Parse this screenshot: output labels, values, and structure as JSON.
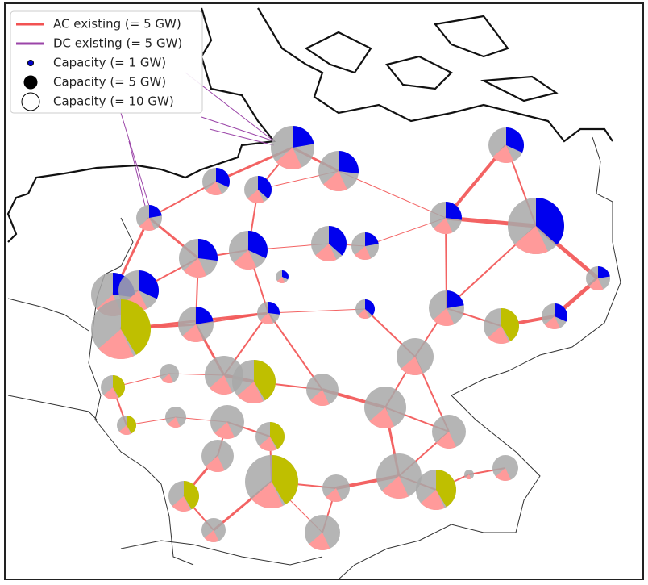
{
  "legend": [
    {
      "label": "AC existing (= 5 GW)",
      "kind": "line",
      "color": "#f25252"
    },
    {
      "label": "DC existing (= 5 GW)",
      "kind": "line",
      "color": "#9b45a8"
    },
    {
      "label": "Capacity (= 1 GW)",
      "kind": "dot-small",
      "color": "#0000cc"
    },
    {
      "label": "Capacity (= 5 GW)",
      "kind": "dot-medium",
      "color": "#000000"
    },
    {
      "label": "Capacity (= 10 GW)",
      "kind": "dot-large",
      "color": "#ffffff"
    }
  ]
}
